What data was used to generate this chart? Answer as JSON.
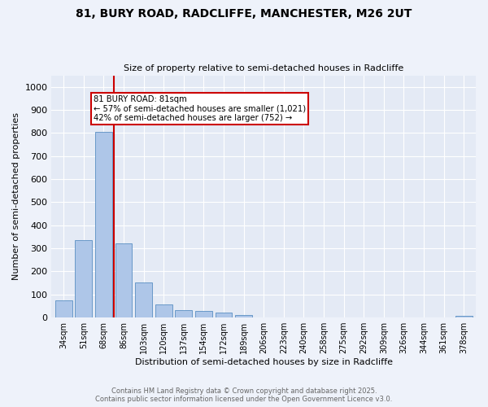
{
  "title_line1": "81, BURY ROAD, RADCLIFFE, MANCHESTER, M26 2UT",
  "title_line2": "Size of property relative to semi-detached houses in Radcliffe",
  "xlabel": "Distribution of semi-detached houses by size in Radcliffe",
  "ylabel": "Number of semi-detached properties",
  "categories": [
    "34sqm",
    "51sqm",
    "68sqm",
    "86sqm",
    "103sqm",
    "120sqm",
    "137sqm",
    "154sqm",
    "172sqm",
    "189sqm",
    "206sqm",
    "223sqm",
    "240sqm",
    "258sqm",
    "275sqm",
    "292sqm",
    "309sqm",
    "326sqm",
    "344sqm",
    "361sqm",
    "378sqm"
  ],
  "values": [
    75,
    335,
    805,
    320,
    152,
    57,
    32,
    27,
    20,
    10,
    0,
    0,
    0,
    0,
    0,
    0,
    0,
    0,
    0,
    0,
    8
  ],
  "bar_color": "#aec6e8",
  "bar_edge_color": "#5a8fc2",
  "vline_x_idx": 2.5,
  "vline_color": "#cc0000",
  "annotation_title": "81 BURY ROAD: 81sqm",
  "annotation_line1": "← 57% of semi-detached houses are smaller (1,021)",
  "annotation_line2": "42% of semi-detached houses are larger (752) →",
  "annotation_box_color": "#cc0000",
  "ylim": [
    0,
    1050
  ],
  "yticks": [
    0,
    100,
    200,
    300,
    400,
    500,
    600,
    700,
    800,
    900,
    1000
  ],
  "footer_line1": "Contains HM Land Registry data © Crown copyright and database right 2025.",
  "footer_line2": "Contains public sector information licensed under the Open Government Licence v3.0.",
  "bg_color": "#eef2fa",
  "plot_bg_color": "#e4eaf5"
}
